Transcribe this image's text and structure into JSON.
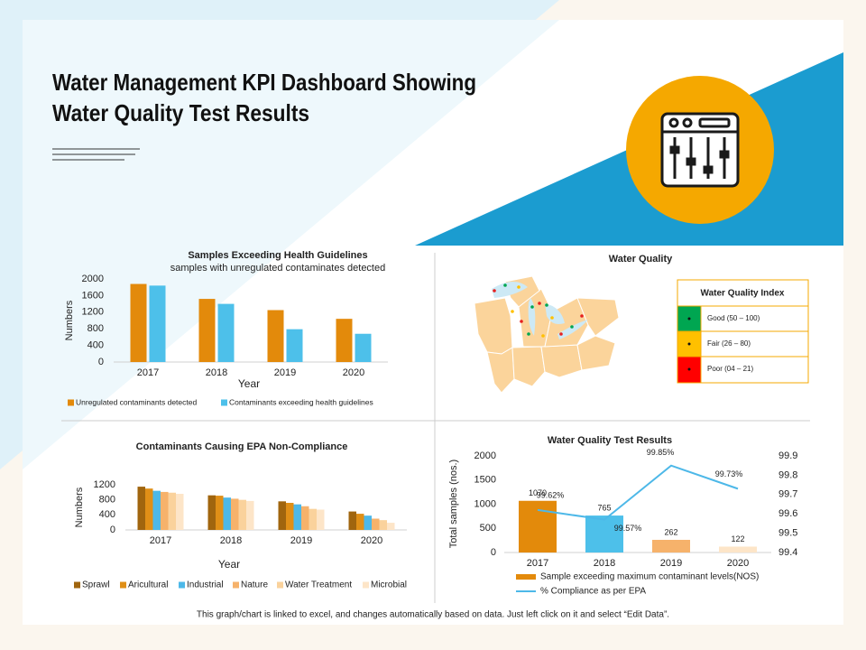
{
  "header": {
    "title_lines": [
      "Water Management KPI Dashboard Showing",
      "Water Quality Test Results"
    ]
  },
  "map": {
    "title": "Water Quality",
    "legend_title": "Water Quality Index",
    "legend_items": [
      "Good (50 – 100)",
      "Fair (26 – 80)",
      "Poor (04 – 21)"
    ]
  },
  "chart_data": [
    {
      "type": "bar",
      "title": "Samples Exceeding Health Guidelines",
      "subtitle": "samples with unregulated contaminates detected",
      "y_label": "Numbers",
      "x_label": "Year",
      "categories": [
        "2017",
        "2018",
        "2019",
        "2020"
      ],
      "series": [
        {
          "name": "Unregulated contaminants detected",
          "color": "#e38a0b",
          "values": [
            1880,
            1520,
            1250,
            1040
          ]
        },
        {
          "name": "Contaminants exceeding health guidelines",
          "color": "#4dc0ea",
          "values": [
            1840,
            1400,
            790,
            680
          ]
        }
      ],
      "ylim": [
        0,
        2000
      ],
      "yticks": [
        0,
        400,
        800,
        1200,
        1600,
        2000
      ],
      "grid": false
    },
    {
      "type": "bar",
      "title": "Contaminants Causing EPA Non-Compliance",
      "y_label": "Numbers",
      "x_label": "Year",
      "categories": [
        "2017",
        "2018",
        "2019",
        "2020"
      ],
      "series": [
        {
          "name": "Sprawl",
          "color": "#a0650e",
          "values": [
            1150,
            920,
            760,
            490
          ]
        },
        {
          "name": "Aricultural",
          "color": "#e08f17",
          "values": [
            1100,
            910,
            720,
            430
          ]
        },
        {
          "name": "Industrial",
          "color": "#4db8e8",
          "values": [
            1040,
            860,
            680,
            380
          ]
        },
        {
          "name": "Nature",
          "color": "#f6b26b",
          "values": [
            1010,
            830,
            630,
            300
          ]
        },
        {
          "name": "Water Treatment",
          "color": "#fad29c",
          "values": [
            990,
            800,
            560,
            260
          ]
        },
        {
          "name": "Microbial",
          "color": "#fde5c8",
          "values": [
            960,
            770,
            540,
            190
          ]
        }
      ],
      "ylim": [
        0,
        1200
      ],
      "yticks": [
        0,
        400,
        800,
        1200
      ],
      "grid": false
    },
    {
      "type": "combo",
      "title": "Water Quality Test Results",
      "y_label": "Total samples (nos.)",
      "categories": [
        "2017",
        "2018",
        "2019",
        "2020"
      ],
      "series": [
        {
          "name": "Sample exceeding maximum contaminant levels(NOS)",
          "color": "#e38a0b",
          "colors": [
            "#e38a0b",
            "#4dc0ea",
            "#f6b26b",
            "#fde5c8"
          ],
          "values": [
            1070,
            765,
            262,
            122
          ]
        },
        {
          "name": "% Compliance as per EPA",
          "color": "#4db8e8",
          "axis": "y2",
          "values": [
            99.62,
            99.57,
            99.85,
            99.73
          ],
          "value_labels": [
            "99.62%",
            "99.57%",
            "99.85%",
            "99.73%"
          ]
        }
      ],
      "ylim": [
        0,
        2000
      ],
      "yticks": [
        0,
        500,
        1000,
        1500,
        2000
      ],
      "y2lim": [
        99.4,
        99.9
      ],
      "y2ticks": [
        99.4,
        99.5,
        99.6,
        99.7,
        99.8,
        99.9
      ],
      "grid": false
    }
  ],
  "footer": "This graph/chart is linked to excel, and changes automatically based on data. Just left click on it and select “Edit Data”."
}
